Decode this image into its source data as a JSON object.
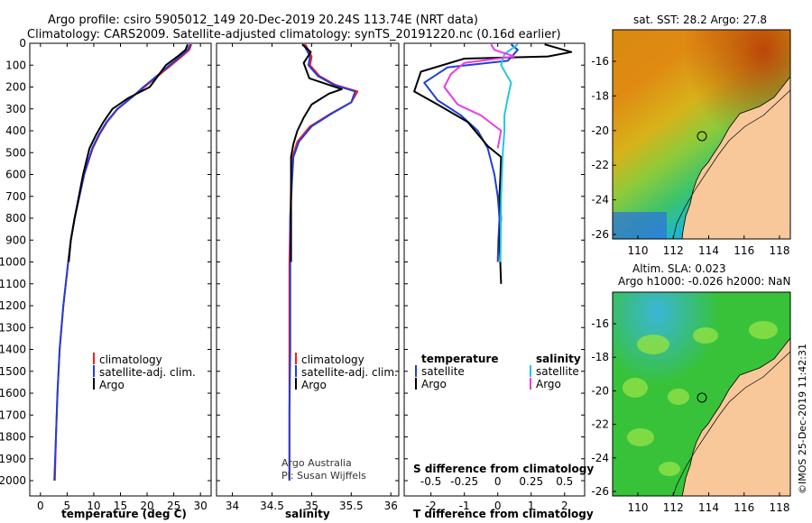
{
  "header": {
    "line1": "Argo profile: csiro 5905012_149 20-Dec-2019 20.24S 113.74E (NRT data)",
    "line2": "Climatology: CARS2009. Satellite-adjusted climatology: synTS_20191220.nc (0.16d earlier)"
  },
  "colors": {
    "climatology": "#ff1a1a",
    "satellite": "#1f3fd6",
    "argo": "#000000",
    "sal_satellite": "#22c8dc",
    "sal_argo": "#e83ce8",
    "land": "#f8c89a"
  },
  "chart_data": [
    {
      "type": "line",
      "id": "temperature",
      "xlabel": "temperature (deg C)",
      "ylabel": "",
      "xlim": [
        -2,
        32
      ],
      "ylim": [
        2070,
        0
      ],
      "xticks": [
        0,
        5,
        10,
        15,
        20,
        25,
        30
      ],
      "yticks": [
        0,
        100,
        200,
        300,
        400,
        500,
        600,
        700,
        800,
        900,
        1000,
        1100,
        1200,
        1300,
        1400,
        1500,
        1600,
        1700,
        1800,
        1900,
        2000
      ],
      "legend": [
        "climatology",
        "satellite-adj. clim.",
        "Argo"
      ],
      "series": [
        {
          "name": "climatology",
          "x": [
            28.3,
            27.9,
            26.5,
            24.5,
            22,
            19.5,
            17,
            14.5,
            12.5,
            11,
            9.8,
            8.2,
            7.3,
            6.4,
            5.7,
            5.2,
            4.3,
            3.6,
            3.2,
            2.9,
            2.7
          ],
          "y": [
            5,
            30,
            60,
            100,
            150,
            200,
            250,
            300,
            360,
            420,
            480,
            600,
            700,
            800,
            900,
            1000,
            1200,
            1400,
            1600,
            1800,
            2000
          ]
        },
        {
          "name": "satellite-adj. clim.",
          "x": [
            28.1,
            27.6,
            26.2,
            24.2,
            21.8,
            19.3,
            17,
            14.4,
            12.4,
            10.9,
            9.7,
            8.2,
            7.3,
            6.4,
            5.7,
            5.2,
            4.3,
            3.6,
            3.2,
            2.9,
            2.6
          ],
          "y": [
            5,
            30,
            60,
            100,
            150,
            200,
            250,
            300,
            360,
            420,
            480,
            600,
            700,
            800,
            900,
            1000,
            1200,
            1400,
            1600,
            1800,
            2000
          ]
        },
        {
          "name": "Argo",
          "x": [
            27.6,
            27.2,
            25.7,
            23.5,
            22,
            20.5,
            16.5,
            13.5,
            11.8,
            10.4,
            9.2,
            8.0,
            7.2,
            6.4,
            5.7,
            5.3
          ],
          "y": [
            5,
            30,
            60,
            100,
            150,
            200,
            250,
            300,
            360,
            420,
            480,
            600,
            700,
            800,
            900,
            1000
          ]
        }
      ]
    },
    {
      "type": "line",
      "id": "salinity",
      "xlabel": "salinity",
      "xlim": [
        33.8,
        36.1
      ],
      "ylim": [
        2070,
        0
      ],
      "xticks": [
        34,
        34.5,
        35,
        35.5,
        36
      ],
      "legend": [
        "climatology",
        "satellite-adj. clim.",
        "Argo"
      ],
      "series": [
        {
          "name": "climatology",
          "x": [
            34.92,
            35.0,
            34.98,
            35.1,
            35.3,
            35.58,
            35.5,
            35.25,
            34.98,
            34.82,
            34.76,
            34.74,
            34.73,
            34.72,
            34.72
          ],
          "y": [
            5,
            60,
            100,
            150,
            190,
            220,
            270,
            320,
            380,
            450,
            520,
            650,
            800,
            1000,
            2000
          ]
        },
        {
          "name": "satellite-adj. clim.",
          "x": [
            34.9,
            34.98,
            34.96,
            35.08,
            35.28,
            35.55,
            35.5,
            35.26,
            35.0,
            34.84,
            34.77,
            34.75,
            34.73,
            34.73,
            34.73,
            34.72,
            34.72
          ],
          "y": [
            5,
            60,
            100,
            150,
            190,
            220,
            270,
            320,
            380,
            450,
            520,
            650,
            800,
            1000,
            1400,
            1700,
            2000
          ]
        },
        {
          "name": "Argo",
          "x": [
            34.88,
            34.99,
            34.9,
            34.97,
            35.38,
            35.22,
            35.0,
            34.9,
            34.82,
            34.77,
            34.74,
            34.74
          ],
          "y": [
            5,
            40,
            90,
            160,
            210,
            230,
            280,
            340,
            400,
            460,
            520,
            1000
          ]
        }
      ]
    },
    {
      "type": "line",
      "id": "difference",
      "xlabel": "T difference from climatology",
      "xlabel2": "S difference from climatology",
      "xlim": [
        -2.8,
        2.6
      ],
      "ylim": [
        2070,
        0
      ],
      "xticks": [
        -2,
        -1,
        0,
        1,
        2
      ],
      "xticks2": [
        "-0.5",
        "-0.25",
        "0",
        "0.25",
        "0.5"
      ],
      "xticks2_pos": [
        -2,
        -1,
        0,
        1,
        2
      ],
      "legend_left_title": "temperature",
      "legend_right_title": "salinity",
      "legend_left": [
        "satellite",
        "Argo"
      ],
      "legend_right": [
        "satellite",
        "Argo"
      ],
      "series": [
        {
          "name": "T satellite",
          "x": [
            0.4,
            0.6,
            0.3,
            -1.5,
            -2.2,
            -1.8,
            -1.1,
            -0.6,
            -0.3,
            -0.1,
            0,
            0.05,
            0.02,
            0
          ],
          "y": [
            5,
            30,
            80,
            110,
            180,
            260,
            330,
            400,
            480,
            600,
            700,
            800,
            900,
            1000
          ]
        },
        {
          "name": "T Argo",
          "x": [
            1.4,
            2.2,
            1.5,
            -1.0,
            -2.3,
            -2.5,
            -1.8,
            -0.9,
            -0.3,
            0.1,
            0.08,
            0.05,
            0.1,
            0.05,
            0.1
          ],
          "y": [
            5,
            40,
            60,
            70,
            130,
            220,
            280,
            360,
            470,
            520,
            600,
            700,
            800,
            900,
            1100
          ]
        },
        {
          "name": "S satellite",
          "x": [
            0.6,
            0.2,
            0.1,
            0.4,
            0.3,
            0.2,
            0.2,
            0.15,
            0.1,
            0.08
          ],
          "y": [
            5,
            50,
            100,
            180,
            250,
            330,
            400,
            500,
            700,
            1000
          ]
        },
        {
          "name": "S Argo",
          "x": [
            -0.2,
            -0.1,
            0.5,
            -1.0,
            -1.4,
            -1.6,
            -1.2,
            -0.5,
            0.1,
            0
          ],
          "y": [
            5,
            30,
            60,
            90,
            140,
            200,
            280,
            330,
            400,
            480
          ]
        }
      ]
    }
  ],
  "maps": {
    "sst": {
      "title": "sat. SST: 28.2  Argo: 27.8",
      "xticks": [
        "110",
        "112",
        "114",
        "116",
        "118"
      ],
      "yticks": [
        "-16",
        "-18",
        "-20",
        "-22",
        "-24",
        "-26"
      ]
    },
    "sla": {
      "title1": "Altim. SLA: 0.023",
      "title2": "Argo h1000: -0.026 h2000: NaN",
      "xticks": [
        "110",
        "112",
        "114",
        "116",
        "118"
      ],
      "yticks": [
        "-16",
        "-18",
        "-20",
        "-22",
        "-24",
        "-26"
      ]
    },
    "argo_lon": 113.74,
    "argo_lat": -20.24
  },
  "credits": {
    "line1": "Argo Australia",
    "line2": "PI: Susan Wijffels"
  },
  "stamp": "©IMOS 25-Dec-2019 11:42:31"
}
